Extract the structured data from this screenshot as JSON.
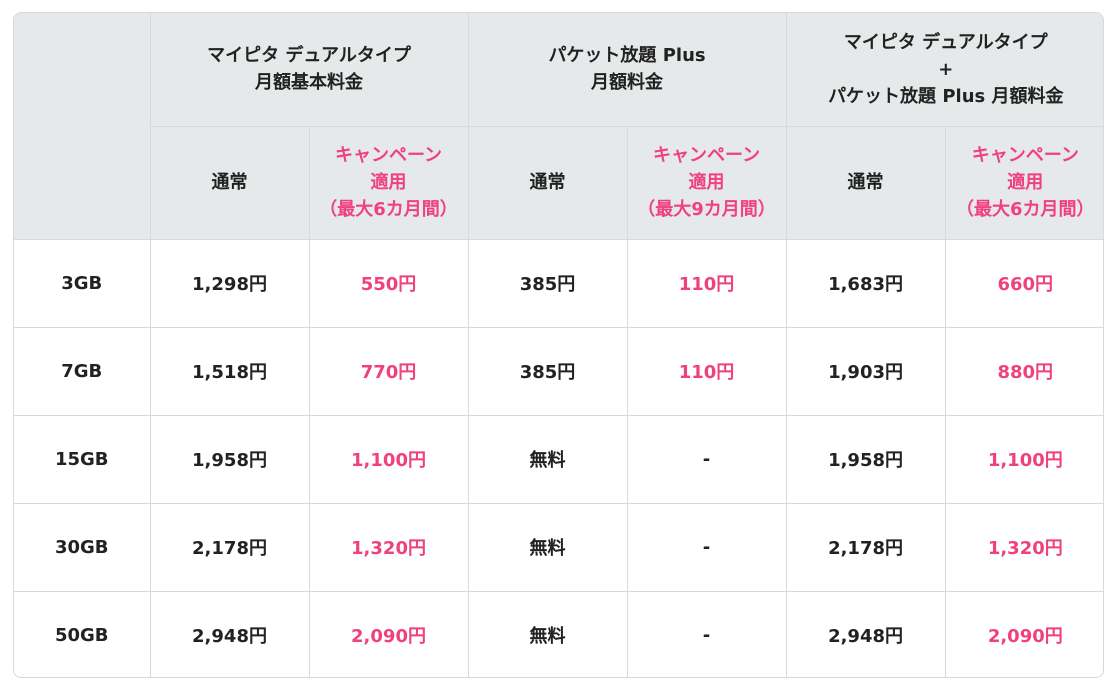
{
  "header": {
    "corner": "",
    "groups": [
      {
        "lines": [
          "マイピタ デュアルタイプ",
          "月額基本料金"
        ]
      },
      {
        "lines": [
          "パケット放題 Plus",
          "月額料金"
        ]
      },
      {
        "lines": [
          "マイピタ デュアルタイプ",
          "+",
          "パケット放題 Plus 月額料金"
        ]
      }
    ],
    "sub": {
      "normal": "通常",
      "campaign_groups": [
        [
          "キャンペーン",
          "適用",
          "（最大6カ月間）"
        ],
        [
          "キャンペーン",
          "適用",
          "（最大9カ月間）"
        ],
        [
          "キャンペーン",
          "適用",
          "（最大6カ月間）"
        ]
      ]
    }
  },
  "rows": [
    {
      "plan": "3GB",
      "cells": [
        "1,298円",
        "550円",
        "385円",
        "110円",
        "1,683円",
        "660円"
      ]
    },
    {
      "plan": "7GB",
      "cells": [
        "1,518円",
        "770円",
        "385円",
        "110円",
        "1,903円",
        "880円"
      ]
    },
    {
      "plan": "15GB",
      "cells": [
        "1,958円",
        "1,100円",
        "無料",
        "-",
        "1,958円",
        "1,100円"
      ]
    },
    {
      "plan": "30GB",
      "cells": [
        "2,178円",
        "1,320円",
        "無料",
        "-",
        "2,178円",
        "1,320円"
      ]
    },
    {
      "plan": "50GB",
      "cells": [
        "2,948円",
        "2,090円",
        "無料",
        "-",
        "2,948円",
        "2,090円"
      ]
    }
  ],
  "colors": {
    "campaign": "#f0417f",
    "header_bg": "#e6e9ea",
    "text": "#222222",
    "border": "#d9d9d9"
  }
}
